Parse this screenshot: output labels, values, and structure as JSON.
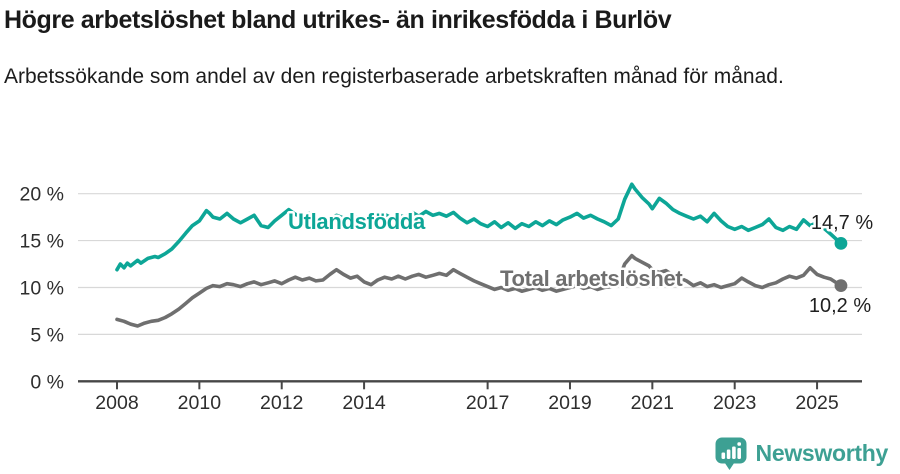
{
  "header": {
    "title": "Högre arbetslöshet bland utrikes- än inrikesfödda i Burlöv",
    "subtitle": "Arbetssökande som andel av den registerbaserade arbetskraften månad för månad."
  },
  "footer": {
    "brand": "Newsworthy",
    "logo_icon": "bar-chart-speech-bubble-icon"
  },
  "colors": {
    "accent_teal": "#0da697",
    "series_gray": "#6f6f6f",
    "brand_teal": "#3da093",
    "grid": "#d8d8d8",
    "axis": "#474747",
    "tick_text": "#2e2e2e",
    "value_text": "#1f1f1f"
  },
  "chart_data": {
    "type": "line",
    "title": "Högre arbetslöshet bland utrikes- än inrikesfödda i Burlöv",
    "subtitle": "Arbetssökande som andel av den registerbaserade arbetskraften månad för månad.",
    "grid": "horizontal",
    "legend_position": "inline-labels",
    "x_axis": {
      "range": [
        2008,
        2025.6
      ],
      "ticks": [
        2008,
        2010,
        2012,
        2014,
        2017,
        2019,
        2021,
        2023,
        2025
      ],
      "tick_labels": [
        "2008",
        "2010",
        "2012",
        "2014",
        "2017",
        "2019",
        "2021",
        "2023",
        "2025"
      ]
    },
    "y_axis": {
      "unit": "%",
      "range": [
        0,
        22
      ],
      "ticks": [
        0,
        5,
        10,
        15,
        20
      ],
      "tick_labels": [
        "0 %",
        "5 %",
        "10 %",
        "15 %",
        "20 %"
      ]
    },
    "series": [
      {
        "name": "Utlandsfödda",
        "color": "#0da697",
        "end_value": 14.7,
        "end_label": "14,7 %",
        "points": [
          [
            2008.0,
            11.9
          ],
          [
            2008.08,
            12.5
          ],
          [
            2008.17,
            12.1
          ],
          [
            2008.25,
            12.6
          ],
          [
            2008.33,
            12.3
          ],
          [
            2008.5,
            12.9
          ],
          [
            2008.58,
            12.6
          ],
          [
            2008.75,
            13.1
          ],
          [
            2008.92,
            13.3
          ],
          [
            2009.0,
            13.2
          ],
          [
            2009.17,
            13.6
          ],
          [
            2009.33,
            14.1
          ],
          [
            2009.5,
            14.9
          ],
          [
            2009.67,
            15.8
          ],
          [
            2009.83,
            16.6
          ],
          [
            2010.0,
            17.1
          ],
          [
            2010.17,
            18.2
          ],
          [
            2010.25,
            17.9
          ],
          [
            2010.33,
            17.5
          ],
          [
            2010.5,
            17.3
          ],
          [
            2010.67,
            17.9
          ],
          [
            2010.83,
            17.3
          ],
          [
            2011.0,
            16.9
          ],
          [
            2011.17,
            17.3
          ],
          [
            2011.33,
            17.7
          ],
          [
            2011.5,
            16.6
          ],
          [
            2011.67,
            16.4
          ],
          [
            2011.83,
            17.1
          ],
          [
            2012.0,
            17.7
          ],
          [
            2012.17,
            18.3
          ],
          [
            2012.33,
            17.8
          ],
          [
            2012.5,
            17.5
          ],
          [
            2012.67,
            17.9
          ],
          [
            2012.83,
            17.3
          ],
          [
            2013.0,
            16.7
          ],
          [
            2013.17,
            17.2
          ],
          [
            2013.33,
            17.7
          ],
          [
            2013.5,
            17.4
          ],
          [
            2013.67,
            17.1
          ],
          [
            2013.83,
            17.5
          ],
          [
            2014.0,
            17.3
          ],
          [
            2014.17,
            17.9
          ],
          [
            2014.33,
            17.5
          ],
          [
            2014.5,
            17.8
          ],
          [
            2014.67,
            17.4
          ],
          [
            2014.83,
            17.7
          ],
          [
            2015.0,
            17.5
          ],
          [
            2015.17,
            18.0
          ],
          [
            2015.33,
            17.6
          ],
          [
            2015.5,
            18.1
          ],
          [
            2015.67,
            17.7
          ],
          [
            2015.83,
            17.9
          ],
          [
            2016.0,
            17.6
          ],
          [
            2016.17,
            18.0
          ],
          [
            2016.33,
            17.4
          ],
          [
            2016.5,
            16.9
          ],
          [
            2016.67,
            17.3
          ],
          [
            2016.83,
            16.8
          ],
          [
            2017.0,
            16.5
          ],
          [
            2017.17,
            17.0
          ],
          [
            2017.33,
            16.4
          ],
          [
            2017.5,
            16.9
          ],
          [
            2017.67,
            16.3
          ],
          [
            2017.83,
            16.8
          ],
          [
            2018.0,
            16.5
          ],
          [
            2018.17,
            17.0
          ],
          [
            2018.33,
            16.6
          ],
          [
            2018.5,
            17.1
          ],
          [
            2018.67,
            16.7
          ],
          [
            2018.83,
            17.2
          ],
          [
            2019.0,
            17.5
          ],
          [
            2019.17,
            17.9
          ],
          [
            2019.33,
            17.4
          ],
          [
            2019.5,
            17.7
          ],
          [
            2019.67,
            17.3
          ],
          [
            2019.83,
            17.0
          ],
          [
            2020.0,
            16.6
          ],
          [
            2020.17,
            17.3
          ],
          [
            2020.33,
            19.4
          ],
          [
            2020.5,
            21.0
          ],
          [
            2020.58,
            20.5
          ],
          [
            2020.75,
            19.6
          ],
          [
            2020.92,
            18.9
          ],
          [
            2021.0,
            18.4
          ],
          [
            2021.17,
            19.5
          ],
          [
            2021.33,
            19.0
          ],
          [
            2021.5,
            18.3
          ],
          [
            2021.67,
            17.9
          ],
          [
            2021.83,
            17.6
          ],
          [
            2022.0,
            17.3
          ],
          [
            2022.17,
            17.6
          ],
          [
            2022.33,
            17.0
          ],
          [
            2022.5,
            17.9
          ],
          [
            2022.67,
            17.1
          ],
          [
            2022.83,
            16.5
          ],
          [
            2023.0,
            16.2
          ],
          [
            2023.17,
            16.5
          ],
          [
            2023.33,
            16.1
          ],
          [
            2023.5,
            16.4
          ],
          [
            2023.67,
            16.7
          ],
          [
            2023.83,
            17.3
          ],
          [
            2024.0,
            16.4
          ],
          [
            2024.17,
            16.1
          ],
          [
            2024.33,
            16.5
          ],
          [
            2024.5,
            16.2
          ],
          [
            2024.67,
            17.2
          ],
          [
            2024.83,
            16.6
          ],
          [
            2025.0,
            16.9
          ],
          [
            2025.17,
            16.3
          ],
          [
            2025.33,
            15.7
          ],
          [
            2025.58,
            14.7
          ]
        ]
      },
      {
        "name": "Total arbetslöshet",
        "color": "#6f6f6f",
        "end_value": 10.2,
        "end_label": "10,2 %",
        "points": [
          [
            2008.0,
            6.6
          ],
          [
            2008.17,
            6.4
          ],
          [
            2008.33,
            6.1
          ],
          [
            2008.5,
            5.9
          ],
          [
            2008.67,
            6.2
          ],
          [
            2008.83,
            6.4
          ],
          [
            2009.0,
            6.5
          ],
          [
            2009.17,
            6.8
          ],
          [
            2009.33,
            7.2
          ],
          [
            2009.5,
            7.7
          ],
          [
            2009.67,
            8.3
          ],
          [
            2009.83,
            8.9
          ],
          [
            2010.0,
            9.4
          ],
          [
            2010.17,
            9.9
          ],
          [
            2010.33,
            10.2
          ],
          [
            2010.5,
            10.1
          ],
          [
            2010.67,
            10.4
          ],
          [
            2010.83,
            10.3
          ],
          [
            2011.0,
            10.1
          ],
          [
            2011.17,
            10.4
          ],
          [
            2011.33,
            10.6
          ],
          [
            2011.5,
            10.3
          ],
          [
            2011.67,
            10.5
          ],
          [
            2011.83,
            10.7
          ],
          [
            2012.0,
            10.4
          ],
          [
            2012.17,
            10.8
          ],
          [
            2012.33,
            11.1
          ],
          [
            2012.5,
            10.8
          ],
          [
            2012.67,
            11.0
          ],
          [
            2012.83,
            10.7
          ],
          [
            2013.0,
            10.8
          ],
          [
            2013.17,
            11.4
          ],
          [
            2013.33,
            11.9
          ],
          [
            2013.5,
            11.4
          ],
          [
            2013.67,
            11.0
          ],
          [
            2013.83,
            11.2
          ],
          [
            2014.0,
            10.6
          ],
          [
            2014.17,
            10.3
          ],
          [
            2014.33,
            10.8
          ],
          [
            2014.5,
            11.1
          ],
          [
            2014.67,
            10.9
          ],
          [
            2014.83,
            11.2
          ],
          [
            2015.0,
            10.9
          ],
          [
            2015.17,
            11.2
          ],
          [
            2015.33,
            11.4
          ],
          [
            2015.5,
            11.1
          ],
          [
            2015.67,
            11.3
          ],
          [
            2015.83,
            11.5
          ],
          [
            2016.0,
            11.3
          ],
          [
            2016.17,
            11.9
          ],
          [
            2016.33,
            11.5
          ],
          [
            2016.5,
            11.1
          ],
          [
            2016.67,
            10.7
          ],
          [
            2016.83,
            10.4
          ],
          [
            2017.0,
            10.1
          ],
          [
            2017.17,
            9.8
          ],
          [
            2017.33,
            10.0
          ],
          [
            2017.5,
            9.7
          ],
          [
            2017.67,
            9.9
          ],
          [
            2017.83,
            9.6
          ],
          [
            2018.0,
            9.8
          ],
          [
            2018.17,
            10.0
          ],
          [
            2018.33,
            9.7
          ],
          [
            2018.5,
            9.9
          ],
          [
            2018.67,
            9.6
          ],
          [
            2018.83,
            9.8
          ],
          [
            2019.0,
            10.0
          ],
          [
            2019.17,
            10.2
          ],
          [
            2019.33,
            9.9
          ],
          [
            2019.5,
            10.1
          ],
          [
            2019.67,
            9.8
          ],
          [
            2019.83,
            10.0
          ],
          [
            2020.0,
            10.1
          ],
          [
            2020.17,
            10.7
          ],
          [
            2020.33,
            12.5
          ],
          [
            2020.5,
            13.4
          ],
          [
            2020.58,
            13.1
          ],
          [
            2020.75,
            12.7
          ],
          [
            2020.92,
            12.3
          ],
          [
            2021.0,
            11.9
          ],
          [
            2021.17,
            11.6
          ],
          [
            2021.33,
            11.8
          ],
          [
            2021.5,
            11.3
          ],
          [
            2021.67,
            11.0
          ],
          [
            2021.83,
            10.7
          ],
          [
            2022.0,
            10.2
          ],
          [
            2022.17,
            10.5
          ],
          [
            2022.33,
            10.1
          ],
          [
            2022.5,
            10.3
          ],
          [
            2022.67,
            10.0
          ],
          [
            2022.83,
            10.2
          ],
          [
            2023.0,
            10.4
          ],
          [
            2023.17,
            11.0
          ],
          [
            2023.33,
            10.6
          ],
          [
            2023.5,
            10.2
          ],
          [
            2023.67,
            10.0
          ],
          [
            2023.83,
            10.3
          ],
          [
            2024.0,
            10.5
          ],
          [
            2024.17,
            10.9
          ],
          [
            2024.33,
            11.2
          ],
          [
            2024.5,
            11.0
          ],
          [
            2024.67,
            11.3
          ],
          [
            2024.83,
            12.1
          ],
          [
            2025.0,
            11.4
          ],
          [
            2025.17,
            11.1
          ],
          [
            2025.33,
            10.9
          ],
          [
            2025.58,
            10.2
          ]
        ]
      }
    ]
  }
}
